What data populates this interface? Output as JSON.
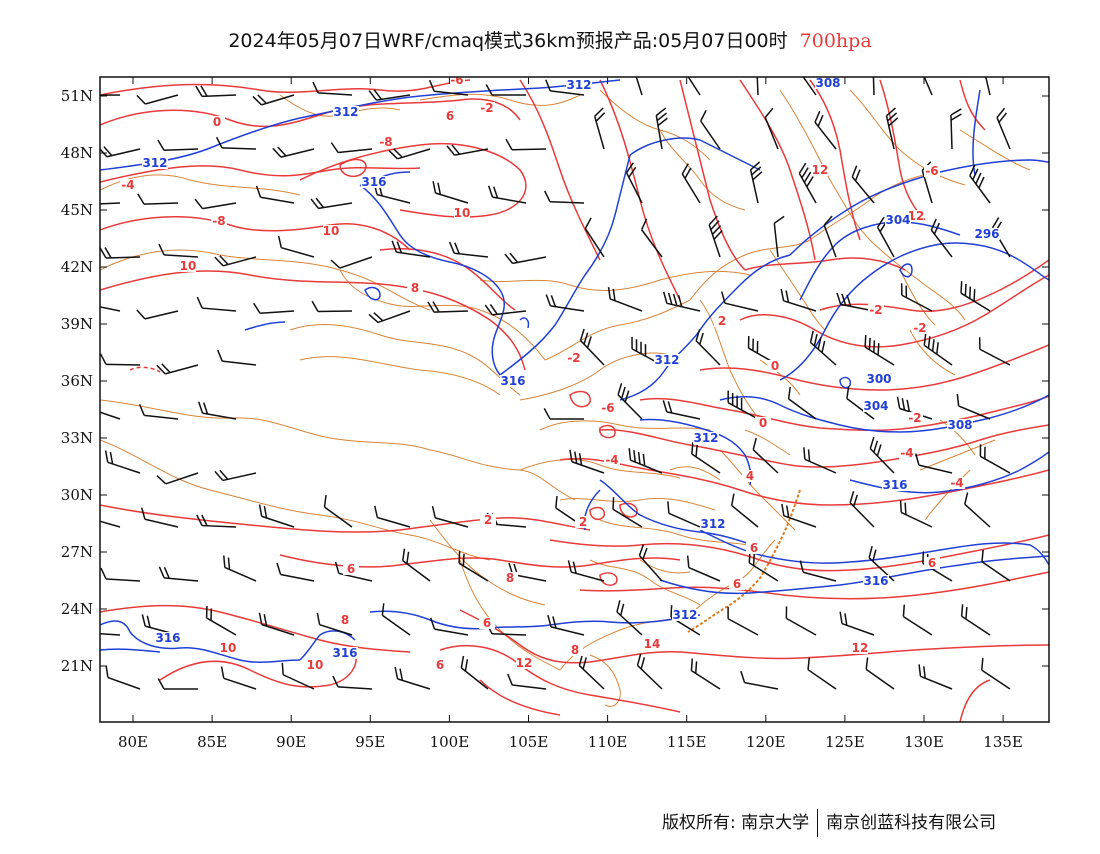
{
  "header": {
    "title": "2024年05月07日WRF/cmaq模式36km预报产品:05月07日00时",
    "level": "700hpa"
  },
  "map": {
    "lon_ticks": [
      "80E",
      "85E",
      "90E",
      "95E",
      "100E",
      "105E",
      "110E",
      "115E",
      "120E",
      "125E",
      "130E",
      "135E"
    ],
    "lat_ticks": [
      "51N",
      "48N",
      "45N",
      "42N",
      "39N",
      "36N",
      "33N",
      "30N",
      "27N",
      "24N",
      "21N"
    ],
    "colors": {
      "temperature": "#e83a3a",
      "geopotential": "#1f3fd6",
      "boundary": "#d9853a",
      "wind": "#111111"
    },
    "temperature_labels": [
      "-6",
      "0",
      "-8",
      "6",
      "-2",
      "-4",
      "-8",
      "-6",
      "10",
      "8",
      "0",
      "-2",
      "-2",
      "2",
      "-2",
      "0",
      "-2",
      "-4",
      "-2",
      "4",
      "2",
      "-4",
      "2",
      "6",
      "6",
      "6",
      "6",
      "8",
      "8",
      "6",
      "8",
      "10",
      "10",
      "12",
      "14",
      "12",
      "12",
      "12",
      "10",
      "10",
      "-6",
      "-4",
      "6"
    ],
    "height_labels": [
      "312",
      "312",
      "308",
      "312",
      "316",
      "304",
      "296",
      "300",
      "304",
      "308",
      "312",
      "312",
      "316",
      "312",
      "316",
      "312",
      "316",
      "316",
      "316"
    ]
  },
  "footer": {
    "left": "版权所有: 南京大学",
    "right": "南京创蓝科技有限公司"
  }
}
